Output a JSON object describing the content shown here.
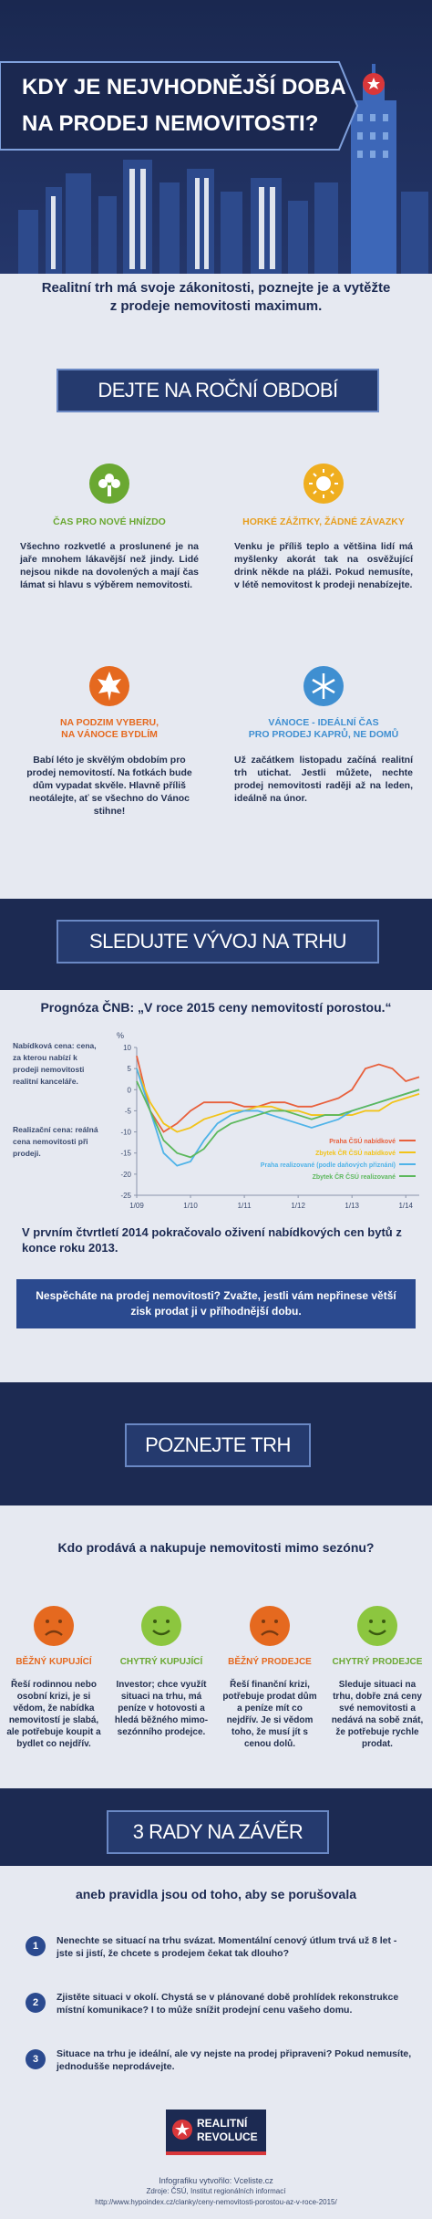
{
  "header": {
    "title": [
      "KDY JE NEJVHODNĚJŠÍ DOBA",
      "NA PRODEJ NEMOVITOSTI?"
    ]
  },
  "intro": "Realitní trh má svoje zákonitosti, poznejte je a vytěžte z prodeje nemovitosti maximum.",
  "seasons": {
    "heading": "DEJTE NA ROČNÍ OBDOBÍ",
    "items": [
      {
        "title": [
          "ČAS PRO NOVÉ HNÍZDO"
        ],
        "text": "Všechno rozkvetlé a proslunené je na jaře mnohem lákavější než jindy. Lidé nejsou nikde na dovolených a mají čas lámat si hlavu s výběrem nemovitosti."
      },
      {
        "title": [
          "HORKÉ ZÁŽITKY, ŽÁDNÉ ZÁVAZKY"
        ],
        "text": "Venku je příliš teplo a většina lidí má myšlenky akorát tak na osvěžující drink někde na pláži. Pokud nemusíte, v létě nemovitost k prodeji nenabízejte."
      },
      {
        "title": [
          "NA PODZIM VYBERU,",
          "NA VÁNOCE BYDLÍM"
        ],
        "text": "Babí léto je skvělým obdobím pro prodej nemovitostí. Na fotkách bude dům vypadat skvěle. Hlavně příliš neotálejte, ať se všechno do Vánoc stihne!"
      },
      {
        "title": [
          "VÁNOCE - IDEÁLNÍ ČAS",
          "PRO PRODEJ KAPRŮ, NE DOMŮ"
        ],
        "text": "Už začátkem listopadu začíná realitní trh utichat. Jestli můžete, nechte prodej nemovitosti raději až na leden, ideálně na únor."
      }
    ]
  },
  "market": {
    "heading": "SLEDUJTE VÝVOJ NA TRHU",
    "notes": [
      "Nabídková cena: cena, za kterou nabízí k prodeji nemovitosti realitní kanceláře.",
      "Realizační cena: reálná cena nemovitosti při prodeji."
    ],
    "summary": "V prvním čtvrtletí 2014 pokračovalo oživení nabídkových cen bytů z konce roku 2013.",
    "callout": "Nespěcháte na prodej nemovitosti? Zvažte, jestli vám nepřinese větší zisk prodat ji v příhodnější dobu."
  },
  "chart_data": {
    "type": "line",
    "title": "Prognóza ČNB: „V roce 2015 ceny nemovitostí porostou.“",
    "y_label": "%",
    "categories": [
      "1/09",
      null,
      null,
      null,
      "1/10",
      null,
      null,
      null,
      "1/11",
      null,
      null,
      null,
      "1/12",
      null,
      null,
      null,
      "1/13",
      null,
      null,
      null,
      "1/14",
      null
    ],
    "series": [
      {
        "name": "Praha ČSÚ nabídkové",
        "color": "#e8603c",
        "values": [
          8,
          -5,
          -10,
          -8,
          -5,
          -3,
          -3,
          -3,
          -4,
          -4,
          -3,
          -3,
          -4,
          -4,
          -3,
          -2,
          0,
          5,
          6,
          5,
          2,
          3
        ]
      },
      {
        "name": "Zbytek ČR ČSÚ nabídkové",
        "color": "#f2c318",
        "values": [
          5,
          -3,
          -8,
          -10,
          -9,
          -7,
          -6,
          -5,
          -5,
          -4,
          -4,
          -5,
          -5,
          -6,
          -6,
          -6,
          -6,
          -5,
          -5,
          -3,
          -2,
          -1
        ]
      },
      {
        "name": "Praha realizované (podle daňových přiznání)",
        "color": "#4fb3e8",
        "values": [
          5,
          -5,
          -15,
          -18,
          -17,
          -12,
          -8,
          -6,
          -5,
          -5,
          -6,
          -7,
          -8,
          -9,
          -8,
          -7,
          -5,
          -4,
          -3,
          -2,
          -1,
          0
        ]
      },
      {
        "name": "Zbytek ČR ČSÚ realizované",
        "color": "#5cb85c",
        "values": [
          2,
          -5,
          -12,
          -15,
          -16,
          -14,
          -10,
          -8,
          -7,
          -6,
          -5,
          -5,
          -6,
          -7,
          -6,
          -6,
          -5,
          -4,
          -3,
          -2,
          -1,
          0
        ]
      }
    ],
    "ylim": [
      -25,
      10
    ],
    "yticks": [
      10,
      5,
      0,
      -5,
      -10,
      -15,
      -20,
      -25
    ],
    "grid": false
  },
  "buyers": {
    "heading": "POZNEJTE TRH",
    "question": "Kdo prodává a nakupuje nemovitosti mimo sezónu?",
    "items": [
      {
        "title": "BĚŽNÝ KUPUJÍCÍ",
        "text": "Řeší rodinnou nebo osobní krizi, je si vědom, že nabídka nemovitostí je slabá, ale potřebuje koupit a bydlet co nejdřív."
      },
      {
        "title": "CHYTRÝ KUPUJÍCÍ",
        "text": "Investor; chce využít situaci na trhu, má peníze v hotovosti a hledá běžného mimo-sezónního prodejce."
      },
      {
        "title": "BĚŽNÝ PRODEJCE",
        "text": "Řeší finanční krizi, potřebuje prodat dům a peníze mít co nejdřív. Je si vědom toho, že musí jít s cenou dolů."
      },
      {
        "title": "CHYTRÝ PRODEJCE",
        "text": "Sleduje situaci na trhu, dobře zná ceny své nemovitosti a nedává na sobě znát, že potřebuje rychle prodat."
      }
    ]
  },
  "tips": {
    "heading": "3 RADY NA ZÁVĚR",
    "subtitle": "aneb pravidla jsou od toho, aby se porušovala",
    "items": [
      {
        "number": 1,
        "text": "Nenechte se situací na trhu svázat. Momentální cenový útlum trvá už 8 let - jste si jistí, že chcete s prodejem čekat tak dlouho?"
      },
      {
        "number": 2,
        "text": "Zjistěte situaci v okolí. Chystá se v plánované době prohlídek rekonstrukce místní komunikace? I to může snížit prodejní cenu vašeho domu."
      },
      {
        "number": 3,
        "text": "Situace na trhu je ideální, ale vy nejste na prodej připraveni? Pokud nemusíte, jednodušše neprodávejte."
      }
    ]
  },
  "logo": [
    "REALITNÍ",
    "REVOLUCE"
  ],
  "footer": {
    "credit": "Infografiku vytvořilo: Vceliste.cz",
    "sources": "Zdroje: ČSÚ, Institut regionálních informací",
    "url": "http://www.hypoindex.cz/clanky/ceny-nemovitosti-porostou-az-v-roce-2015/"
  }
}
